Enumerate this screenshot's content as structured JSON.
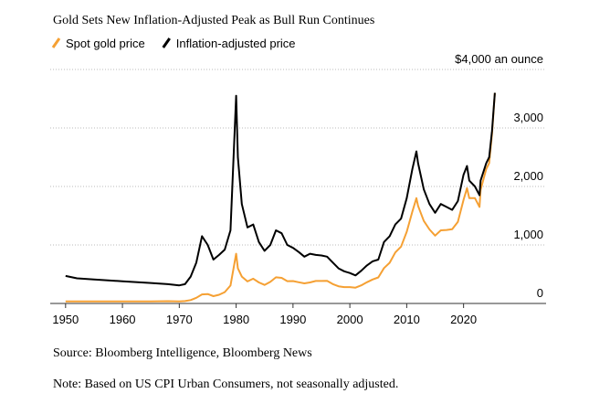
{
  "chart_data": {
    "type": "line",
    "title": "Gold Sets New Inflation-Adjusted Peak as Bull Run Continues",
    "source": "Source: Bloomberg Intelligence, Bloomberg News",
    "note": "Note: Based on US CPI Urban Consumers, not seasonally adjusted.",
    "x": [
      1950,
      1952,
      1955,
      1960,
      1965,
      1968,
      1970,
      1971,
      1972,
      1973,
      1974,
      1975,
      1976,
      1977,
      1978,
      1979,
      1980,
      1980.3,
      1981,
      1982,
      1983,
      1984,
      1985,
      1986,
      1987,
      1988,
      1989,
      1990,
      1991,
      1992,
      1993,
      1994,
      1995,
      1996,
      1997,
      1998,
      1999,
      2000,
      2001,
      2002,
      2003,
      2004,
      2005,
      2006,
      2007,
      2008,
      2009,
      2010,
      2011,
      2011.7,
      2012,
      2013,
      2014,
      2015,
      2016,
      2017,
      2018,
      2019,
      2020,
      2020.6,
      2021,
      2022,
      2022.8,
      2023,
      2024,
      2024.5,
      2025,
      2025.5
    ],
    "series": [
      {
        "name": "Spot gold price",
        "color": "#f5a033",
        "values": [
          35,
          35,
          35,
          35,
          35,
          39,
          36,
          41,
          58,
          97,
          154,
          161,
          125,
          148,
          193,
          306,
          850,
          600,
          460,
          376,
          424,
          360,
          317,
          368,
          447,
          437,
          381,
          383,
          362,
          344,
          360,
          384,
          384,
          387,
          331,
          294,
          279,
          279,
          271,
          310,
          363,
          409,
          445,
          604,
          696,
          872,
          972,
          1225,
          1572,
          1800,
          1669,
          1411,
          1266,
          1160,
          1250,
          1257,
          1268,
          1393,
          1770,
          1970,
          1800,
          1800,
          1650,
          1940,
          2300,
          2400,
          2900,
          3600
        ]
      },
      {
        "name": "Inflation-adjusted price",
        "color": "#000000",
        "values": [
          470,
          430,
          410,
          380,
          350,
          330,
          310,
          330,
          460,
          700,
          1150,
          1000,
          750,
          830,
          920,
          1250,
          3550,
          2500,
          1700,
          1300,
          1350,
          1050,
          900,
          1000,
          1250,
          1200,
          1000,
          950,
          880,
          800,
          850,
          830,
          820,
          800,
          700,
          600,
          550,
          520,
          480,
          560,
          650,
          720,
          750,
          1050,
          1150,
          1350,
          1450,
          1800,
          2300,
          2600,
          2400,
          1950,
          1700,
          1550,
          1700,
          1650,
          1600,
          1750,
          2200,
          2350,
          2100,
          2000,
          1850,
          2100,
          2400,
          2500,
          2950,
          3600
        ]
      }
    ],
    "xlim": [
      1947.3,
      2026
    ],
    "xticks": [
      1950,
      1960,
      1970,
      1980,
      1990,
      2000,
      2010,
      2020
    ],
    "ylim": [
      0,
      4000
    ],
    "yticks": [
      0,
      {
        "value": 1000,
        "label": "1,000"
      },
      {
        "value": 2000,
        "label": "2,000"
      },
      {
        "value": 3000,
        "label": "3,000"
      },
      {
        "value": 4000,
        "label": "$4,000 an ounce"
      }
    ],
    "grid": true
  }
}
